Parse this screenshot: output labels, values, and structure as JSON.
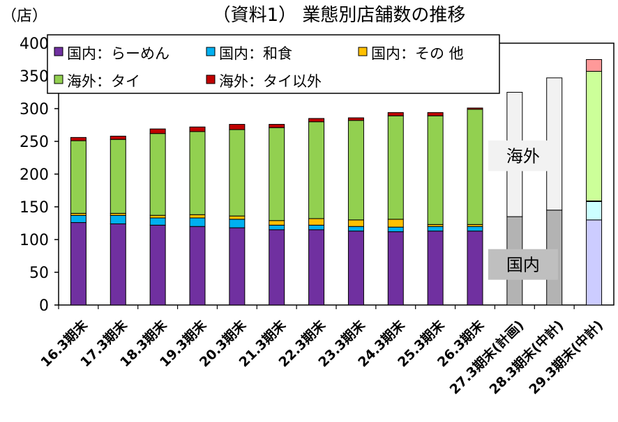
{
  "chart_data": {
    "type": "bar",
    "stacked": true,
    "title": "（資料1） 業態別店舗数の推移",
    "unit_label": "（店）",
    "ylim": [
      0,
      400
    ],
    "yticks": [
      0,
      50,
      100,
      150,
      200,
      250,
      300,
      350,
      400
    ],
    "categories": [
      "16.3期末",
      "17.3期末",
      "18.3期末",
      "19.3期末",
      "20.3期末",
      "21.3期末",
      "22.3期末",
      "23.3期末",
      "24.3期末",
      "25.3期末",
      "26.3期末",
      "27.3期末(計画)",
      "28.3期末(中計)",
      "29.3期末(中計)"
    ],
    "series": [
      {
        "name": "国内：らーめん",
        "color": "#7030a0",
        "values": [
          126,
          124,
          122,
          120,
          118,
          115,
          115,
          113,
          112,
          113,
          113,
          null,
          null,
          null
        ]
      },
      {
        "name": "国内：和食",
        "color": "#00b0f0",
        "values": [
          11,
          13,
          11,
          13,
          13,
          7,
          7,
          7,
          7,
          7,
          7,
          null,
          null,
          null
        ]
      },
      {
        "name": "国内：その 他",
        "color": "#ffc000",
        "values": [
          3,
          3,
          4,
          5,
          5,
          7,
          10,
          10,
          12,
          3,
          3,
          null,
          null,
          null
        ]
      },
      {
        "name": "海外：タイ",
        "color": "#92d050",
        "values": [
          111,
          113,
          125,
          127,
          132,
          142,
          148,
          152,
          158,
          166,
          176,
          null,
          null,
          null
        ]
      },
      {
        "name": "海外：タイ以外",
        "color": "#c00000",
        "values": [
          5,
          5,
          7,
          7,
          8,
          5,
          5,
          4,
          5,
          5,
          2,
          null,
          null,
          null
        ]
      }
    ],
    "plan_series": [
      {
        "name": "国内",
        "values": [
          null,
          null,
          null,
          null,
          null,
          null,
          null,
          null,
          null,
          null,
          null,
          135,
          145,
          null
        ]
      },
      {
        "name": "海外",
        "values": [
          null,
          null,
          null,
          null,
          null,
          null,
          null,
          null,
          null,
          null,
          null,
          190,
          202,
          null
        ]
      }
    ],
    "final_bar": {
      "category": "29.3期末(中計)",
      "segments": [
        {
          "series": "国内：らーめん",
          "value": 130,
          "color": "#ccccff"
        },
        {
          "series": "国内：和食",
          "value": 28,
          "color": "#ccffff"
        },
        {
          "series": "国内：その 他",
          "value": 1,
          "color": "#ffffcc"
        },
        {
          "series": "海外：タイ",
          "value": 198,
          "color": "#ccff99"
        },
        {
          "series": "海外：タイ以外",
          "value": 18,
          "color": "#ff9999"
        }
      ]
    },
    "annotations": [
      {
        "text": "海外",
        "category": "27.3期末(計画)",
        "value": 228
      },
      {
        "text": "国内",
        "category": "27.3期末(計画)",
        "value": 62
      }
    ],
    "legend_position": "top-left",
    "grid": false
  }
}
